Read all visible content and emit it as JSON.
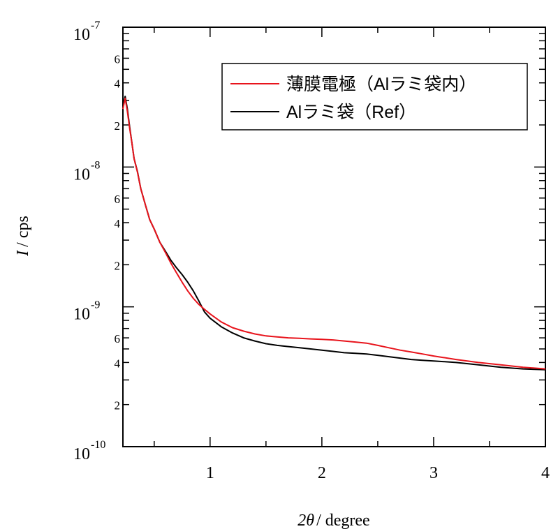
{
  "chart_data": {
    "type": "line",
    "xlabel": {
      "symbol": "2θ",
      "unit": "/ degree"
    },
    "ylabel": {
      "symbol": "I",
      "unit": "/ cps"
    },
    "xlim": [
      0.22,
      4.0
    ],
    "ylim": [
      1e-10,
      1e-07
    ],
    "yscale": "log",
    "x_ticks": [
      {
        "value": 1,
        "label": "1"
      },
      {
        "value": 2,
        "label": "2"
      },
      {
        "value": 3,
        "label": "3"
      },
      {
        "value": 4,
        "label": "4"
      }
    ],
    "y_major_ticks": [
      {
        "value": 1e-10,
        "base": "10",
        "exp": "-10"
      },
      {
        "value": 1e-09,
        "base": "10",
        "exp": "-9"
      },
      {
        "value": 1e-08,
        "base": "10",
        "exp": "-8"
      },
      {
        "value": 1e-07,
        "base": "10",
        "exp": "-7"
      }
    ],
    "y_minor_labels": [
      {
        "value": 2e-10,
        "label": "2"
      },
      {
        "value": 4e-10,
        "label": "4"
      },
      {
        "value": 6e-10,
        "label": "6"
      },
      {
        "value": 2e-09,
        "label": "2"
      },
      {
        "value": 4e-09,
        "label": "4"
      },
      {
        "value": 6e-09,
        "label": "6"
      },
      {
        "value": 2e-08,
        "label": "2"
      },
      {
        "value": 4e-08,
        "label": "4"
      },
      {
        "value": 6e-08,
        "label": "6"
      }
    ],
    "legend_position": "top-right",
    "series": [
      {
        "name": "薄膜電極（Alラミ袋内）",
        "color": "#e8141c",
        "x": [
          0.22,
          0.24,
          0.26,
          0.28,
          0.3,
          0.32,
          0.35,
          0.38,
          0.42,
          0.46,
          0.5,
          0.55,
          0.6,
          0.65,
          0.7,
          0.75,
          0.8,
          0.85,
          0.9,
          0.95,
          1.0,
          1.1,
          1.2,
          1.3,
          1.4,
          1.5,
          1.6,
          1.7,
          1.8,
          1.9,
          2.0,
          2.1,
          2.2,
          2.3,
          2.4,
          2.5,
          2.6,
          2.7,
          2.8,
          2.9,
          3.0,
          3.2,
          3.4,
          3.6,
          3.8,
          4.0
        ],
        "y": [
          2.6e-08,
          3.1e-08,
          2.5e-08,
          1.9e-08,
          1.5e-08,
          1.15e-08,
          9.2e-09,
          7e-09,
          5.4e-09,
          4.2e-09,
          3.6e-09,
          2.9e-09,
          2.45e-09,
          2.05e-09,
          1.75e-09,
          1.5e-09,
          1.3e-09,
          1.15e-09,
          1.04e-09,
          9.6e-10,
          8.9e-10,
          7.8e-10,
          7.1e-10,
          6.7e-10,
          6.4e-10,
          6.2e-10,
          6.1e-10,
          6e-10,
          5.95e-10,
          5.9e-10,
          5.85e-10,
          5.8e-10,
          5.7e-10,
          5.6e-10,
          5.5e-10,
          5.3e-10,
          5.1e-10,
          4.9e-10,
          4.75e-10,
          4.6e-10,
          4.45e-10,
          4.2e-10,
          4e-10,
          3.85e-10,
          3.7e-10,
          3.6e-10
        ]
      },
      {
        "name": "Alラミ袋（Ref）",
        "color": "#000000",
        "x": [
          0.22,
          0.24,
          0.26,
          0.28,
          0.3,
          0.32,
          0.35,
          0.38,
          0.42,
          0.46,
          0.5,
          0.55,
          0.6,
          0.65,
          0.7,
          0.75,
          0.8,
          0.85,
          0.9,
          0.95,
          1.0,
          1.1,
          1.2,
          1.3,
          1.4,
          1.5,
          1.6,
          1.7,
          1.8,
          1.9,
          2.0,
          2.1,
          2.2,
          2.3,
          2.4,
          2.5,
          2.6,
          2.7,
          2.8,
          2.9,
          3.0,
          3.2,
          3.4,
          3.6,
          3.8,
          4.0
        ],
        "y": [
          2.7e-08,
          3.2e-08,
          2.6e-08,
          1.95e-08,
          1.5e-08,
          1.15e-08,
          9.3e-09,
          7e-09,
          5.4e-09,
          4.2e-09,
          3.6e-09,
          2.9e-09,
          2.5e-09,
          2.15e-09,
          1.9e-09,
          1.7e-09,
          1.5e-09,
          1.3e-09,
          1.1e-09,
          9.2e-10,
          8.3e-10,
          7.2e-10,
          6.5e-10,
          6e-10,
          5.7e-10,
          5.45e-10,
          5.3e-10,
          5.2e-10,
          5.1e-10,
          5e-10,
          4.9e-10,
          4.8e-10,
          4.7e-10,
          4.65e-10,
          4.6e-10,
          4.5e-10,
          4.4e-10,
          4.3e-10,
          4.2e-10,
          4.15e-10,
          4.1e-10,
          4e-10,
          3.85e-10,
          3.7e-10,
          3.6e-10,
          3.55e-10
        ]
      }
    ]
  }
}
